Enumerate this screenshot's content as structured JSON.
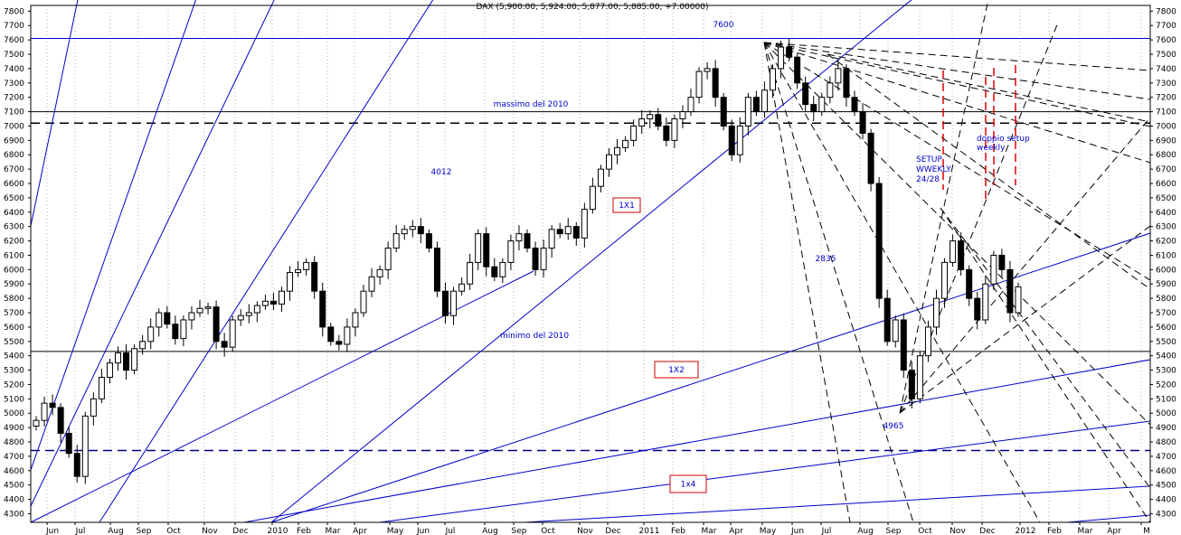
{
  "chart_data": {
    "type": "candlestick",
    "title": "DAX (5,900.00, 5,924.00, 5,877.00, 5,885.00, +7.00000)",
    "y_ticks": [
      4300,
      4400,
      4500,
      4600,
      4700,
      4800,
      4900,
      5000,
      5100,
      5200,
      5300,
      5400,
      5500,
      5600,
      5700,
      5800,
      5900,
      6000,
      6100,
      6200,
      6300,
      6400,
      6500,
      6600,
      6700,
      6800,
      6900,
      7000,
      7100,
      7200,
      7300,
      7400,
      7500,
      7600,
      7700,
      7800
    ],
    "ylim": [
      4240,
      7840
    ],
    "x_labels": [
      "Jun",
      "Jul",
      "Aug",
      "Sep",
      "Oct",
      "Nov",
      "Dec",
      "2010",
      "Feb",
      "Mar",
      "Apr",
      "May",
      "Jun",
      "Jul",
      "Aug",
      "Sep",
      "Oct",
      "Nov",
      "Dec",
      "2011",
      "Feb",
      "Mar",
      "Apr",
      "May",
      "Jun",
      "Jul",
      "Aug",
      "Sep",
      "Oct",
      "Nov",
      "Dec",
      "2012",
      "Feb",
      "Mar",
      "Apr",
      "M"
    ],
    "grid": "vertical-dotted",
    "horizontal_levels": [
      {
        "value": 7610,
        "color": "#0000cc",
        "style": "solid"
      },
      {
        "value": 7100,
        "color": "#000000",
        "style": "solid"
      },
      {
        "value": 7020,
        "color": "#000000",
        "style": "dashed"
      },
      {
        "value": 5430,
        "color": "#000000",
        "style": "solid"
      },
      {
        "value": 4740,
        "color": "#000080",
        "style": "dashed"
      }
    ],
    "annotations": [
      {
        "text": "7600",
        "color": "#0000cc"
      },
      {
        "text": "massimo del 2010",
        "color": "#0000cc"
      },
      {
        "text": "4012",
        "color": "#0000cc"
      },
      {
        "text": "2835",
        "color": "#0000cc"
      },
      {
        "text": "minimo del 2010",
        "color": "#0000cc"
      },
      {
        "text": "4965",
        "color": "#0000cc"
      },
      {
        "text": "SETUP",
        "color": "#0000cc"
      },
      {
        "text": "WWEKLY",
        "color": "#0000cc"
      },
      {
        "text": "24/28",
        "color": "#0000cc"
      },
      {
        "text": "doppio setup",
        "color": "#0000cc"
      },
      {
        "text": "weekly",
        "color": "#0000cc"
      }
    ],
    "boxed_labels": [
      {
        "text": "1X1",
        "color": "#cc0000"
      },
      {
        "text": "1X2",
        "color": "#cc0000"
      },
      {
        "text": "1x4",
        "color": "#cc0000"
      }
    ],
    "weekly_close": [
      4950,
      5070,
      5040,
      4860,
      4720,
      4560,
      4980,
      5100,
      5250,
      5350,
      5420,
      5300,
      5450,
      5500,
      5600,
      5700,
      5620,
      5520,
      5650,
      5700,
      5730,
      5740,
      5500,
      5460,
      5650,
      5680,
      5700,
      5750,
      5780,
      5760,
      5850,
      5980,
      6000,
      6050,
      5850,
      5600,
      5500,
      5480,
      5600,
      5700,
      5850,
      5950,
      6000,
      6150,
      6250,
      6280,
      6300,
      6250,
      6150,
      5850,
      5680,
      5850,
      5900,
      6050,
      6250,
      6020,
      5950,
      6050,
      6200,
      6250,
      6150,
      6000,
      6150,
      6280,
      6250,
      6300,
      6220,
      6420,
      6580,
      6700,
      6800,
      6850,
      6900,
      7000,
      7050,
      7080,
      7000,
      6900,
      7050,
      7100,
      7200,
      7380,
      7400,
      7200,
      7000,
      6800,
      7000,
      7200,
      7100,
      7250,
      7400,
      7550,
      7480,
      7300,
      7150,
      7100,
      7200,
      7300,
      7400,
      7200,
      7100,
      6950,
      6600,
      5800,
      5500,
      5650,
      5300,
      5100,
      5400,
      5600,
      5800,
      6050,
      6200,
      6000,
      5800,
      5650,
      5900,
      6100,
      6000,
      5700,
      5880
    ]
  }
}
